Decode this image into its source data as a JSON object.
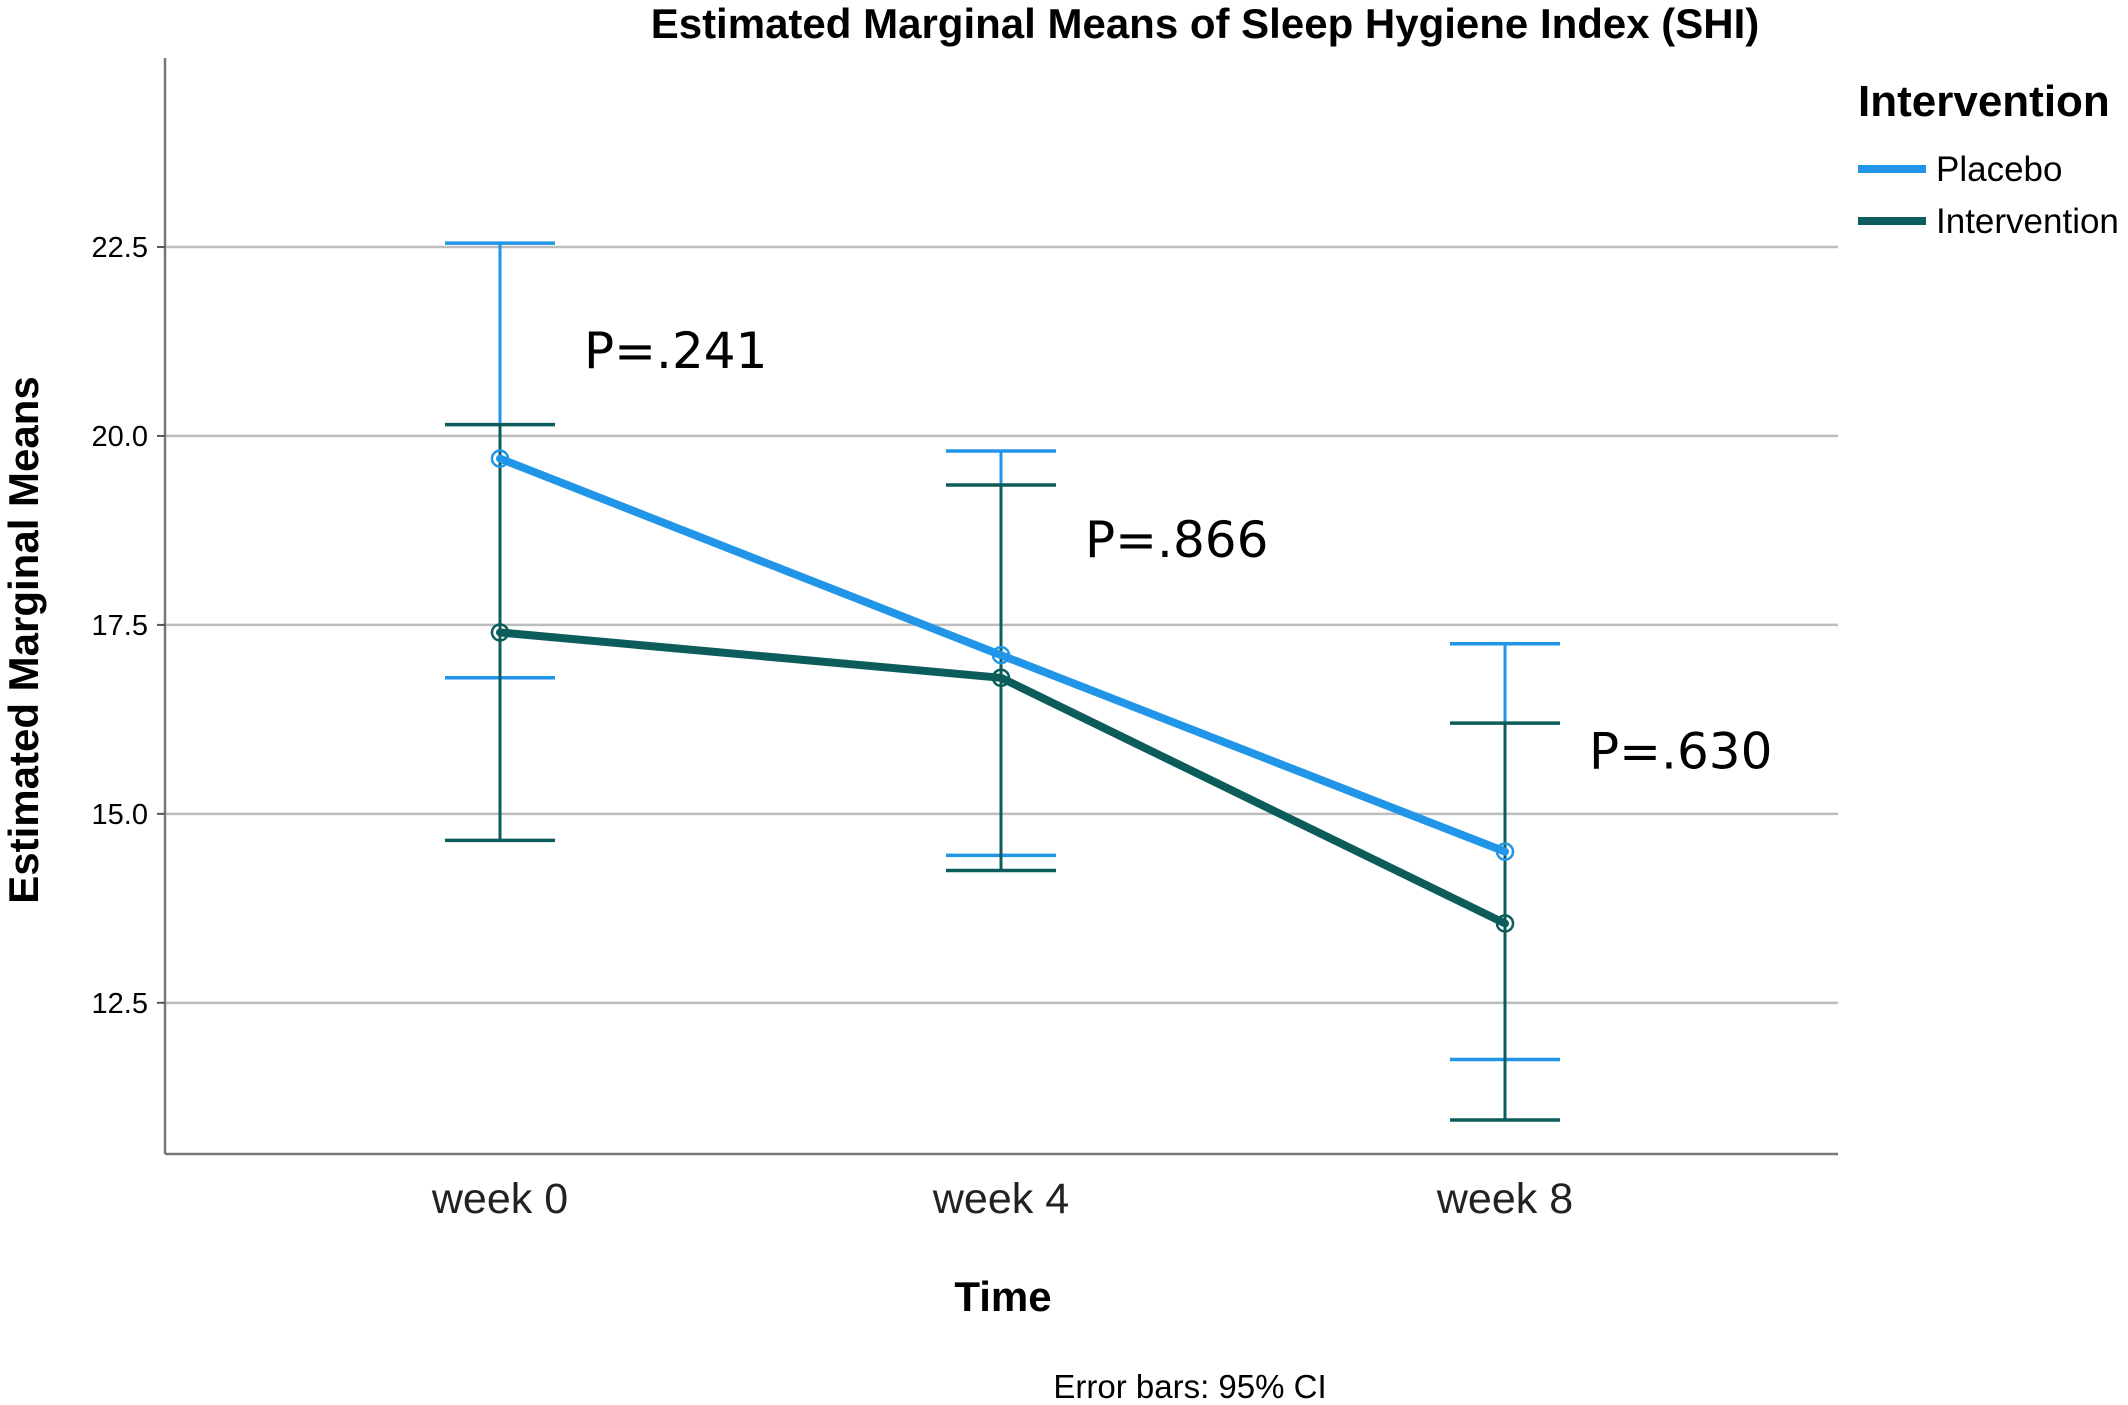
{
  "chart_data": {
    "type": "line",
    "title": "Estimated Marginal Means of Sleep Hygiene Index (SHI)",
    "xlabel": "Time",
    "ylabel": "Estimated Marginal Means",
    "categories": [
      "week 0",
      "week 4",
      "week 8"
    ],
    "yticks": [
      "12.5",
      "15.0",
      "17.5",
      "20.0",
      "22.5"
    ],
    "ylim": [
      10.5,
      25
    ],
    "grid": "horizontal",
    "legend_title": "Intervention",
    "legend_position": "top-right",
    "series": [
      {
        "name": "Placebo",
        "color": "#2196e8",
        "values": [
          19.7,
          17.1,
          14.5
        ],
        "ci_low": [
          16.8,
          14.45,
          11.75
        ],
        "ci_high": [
          22.55,
          19.8,
          17.25
        ]
      },
      {
        "name": "Intervention",
        "color": "#0b5c5a",
        "values": [
          17.4,
          16.8,
          13.55
        ],
        "ci_low": [
          14.65,
          14.25,
          10.95
        ],
        "ci_high": [
          20.15,
          19.35,
          16.2
        ]
      }
    ],
    "annotations": [
      {
        "text": "P=.241",
        "category": "week 0",
        "y": 20.9
      },
      {
        "text": "P=.866",
        "category": "week 4",
        "y": 18.4
      },
      {
        "text": "P=.630",
        "category": "week 8",
        "y": 15.6
      }
    ],
    "footnote": "Error bars: 95% CI"
  }
}
